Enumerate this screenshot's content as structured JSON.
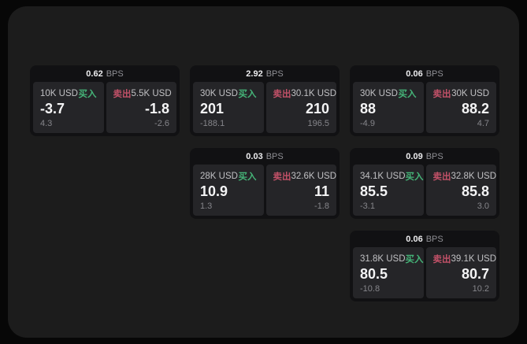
{
  "page": {
    "background": "#070707",
    "window_background": "#1c1c1c"
  },
  "labels": {
    "bps_unit": "BPS",
    "buy": "买入",
    "sell": "卖出"
  },
  "colors": {
    "buy_green": "#45b478",
    "sell_red": "#c25168",
    "card_bg": "#111113",
    "panel_bg": "#252528"
  },
  "cards": [
    {
      "bps": "0.62",
      "grid": {
        "row": 1,
        "col": 1
      },
      "buy": {
        "amount": "10K USD",
        "value": "-3.7",
        "sub": "4.3"
      },
      "sell": {
        "amount": "5.5K USD",
        "value": "-1.8",
        "sub": "-2.6"
      }
    },
    {
      "bps": "2.92",
      "grid": {
        "row": 1,
        "col": 2
      },
      "buy": {
        "amount": "30K USD",
        "value": "201",
        "sub": "-188.1"
      },
      "sell": {
        "amount": "30.1K USD",
        "value": "210",
        "sub": "196.5"
      }
    },
    {
      "bps": "0.06",
      "grid": {
        "row": 1,
        "col": 3
      },
      "buy": {
        "amount": "30K USD",
        "value": "88",
        "sub": "-4.9"
      },
      "sell": {
        "amount": "30K USD",
        "value": "88.2",
        "sub": "4.7"
      }
    },
    {
      "bps": "0.03",
      "grid": {
        "row": 2,
        "col": 2
      },
      "buy": {
        "amount": "28K USD",
        "value": "10.9",
        "sub": "1.3"
      },
      "sell": {
        "amount": "32.6K USD",
        "value": "11",
        "sub": "-1.8"
      }
    },
    {
      "bps": "0.09",
      "grid": {
        "row": 2,
        "col": 3
      },
      "buy": {
        "amount": "34.1K USD",
        "value": "85.5",
        "sub": "-3.1"
      },
      "sell": {
        "amount": "32.8K USD",
        "value": "85.8",
        "sub": "3.0"
      }
    },
    {
      "bps": "0.06",
      "grid": {
        "row": 3,
        "col": 3
      },
      "buy": {
        "amount": "31.8K USD",
        "value": "80.5",
        "sub": "-10.8"
      },
      "sell": {
        "amount": "39.1K USD",
        "value": "80.7",
        "sub": "10.2"
      }
    }
  ]
}
